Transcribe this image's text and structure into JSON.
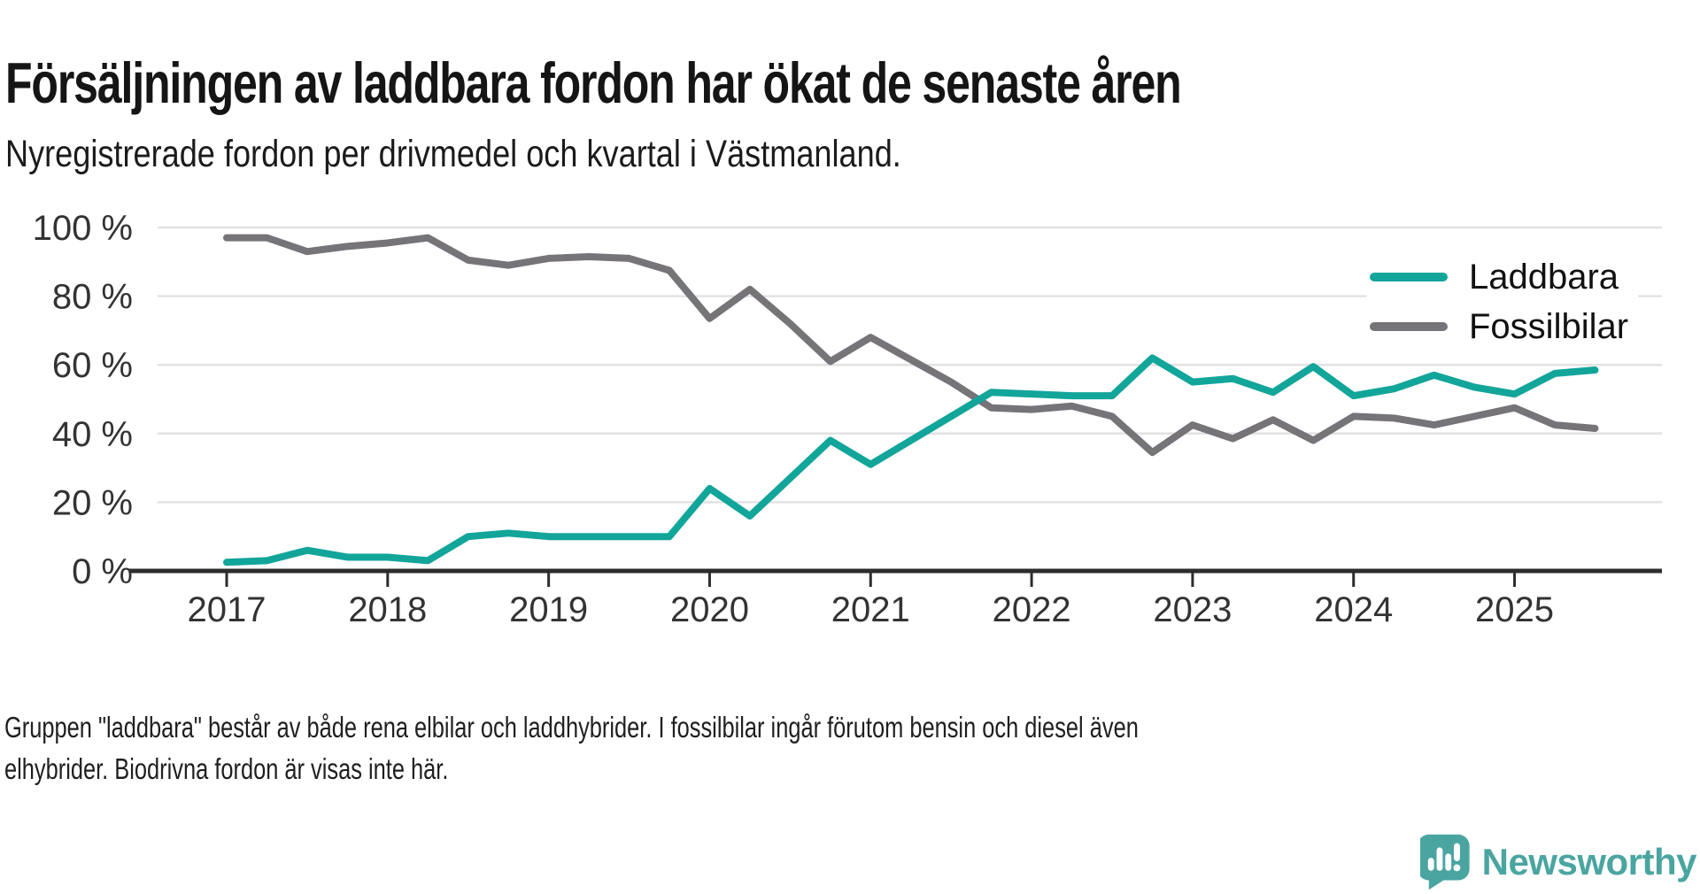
{
  "title": "Försäljningen av laddbara fordon har ökat de senaste åren",
  "subtitle": "Nyregistrerade fordon per drivmedel och kvartal i Västmanland.",
  "footer": {
    "line1": "Gruppen \"laddbara\" består av både rena elbilar och laddhybrider. I fossilbilar ingår förutom bensin och diesel även",
    "line2": "elhybrider. Biodrivna fordon är visas inte här."
  },
  "branding": {
    "name": "Newsworthy",
    "logo_icon": "bar-chart-speech-bubble",
    "color": "#4aa5a1"
  },
  "chart_data": {
    "type": "line",
    "title": "Försäljningen av laddbara fordon har ökat de senaste åren",
    "subtitle": "Nyregistrerade fordon per drivmedel och kvartal i Västmanland.",
    "x_freq": "quarterly",
    "x_start": "2017-Q1",
    "x_end": "2025-Q3",
    "x_tick_labels": [
      "2017",
      "2018",
      "2019",
      "2020",
      "2021",
      "2022",
      "2023",
      "2024",
      "2025"
    ],
    "y_tick_labels": [
      "100 %",
      "80 %",
      "60 %",
      "40 %",
      "20 %",
      "0 %"
    ],
    "y_unit": "%",
    "ylim": [
      0,
      100
    ],
    "grid": true,
    "legend_position": "inside-right",
    "colors": {
      "laddbara": "#12a59a",
      "fossilbilar": "#767379",
      "gridline": "#e2e2e2",
      "axis": "#2d2d2d"
    },
    "series": [
      {
        "name": "Laddbara",
        "color": "#12a59a",
        "values": [
          2.5,
          3,
          6,
          4,
          4,
          3,
          10,
          11,
          10,
          10,
          10,
          10,
          24,
          16,
          27,
          38,
          31,
          38,
          45,
          52,
          51.5,
          51,
          51,
          62,
          55,
          56,
          52,
          59.5,
          51,
          53,
          57,
          53.5,
          51.5,
          57.5,
          58.5
        ]
      },
      {
        "name": "Fossilbilar",
        "color": "#767379",
        "values": [
          97,
          97,
          93,
          94.5,
          95.5,
          97,
          90.5,
          89,
          91,
          91.5,
          91,
          87.5,
          73.5,
          82,
          72,
          61,
          68,
          61.5,
          55,
          47.5,
          47,
          48,
          45,
          34.5,
          42.5,
          38.5,
          44,
          38,
          45,
          44.5,
          42.5,
          45,
          47.5,
          42.5,
          41.5
        ]
      }
    ]
  }
}
